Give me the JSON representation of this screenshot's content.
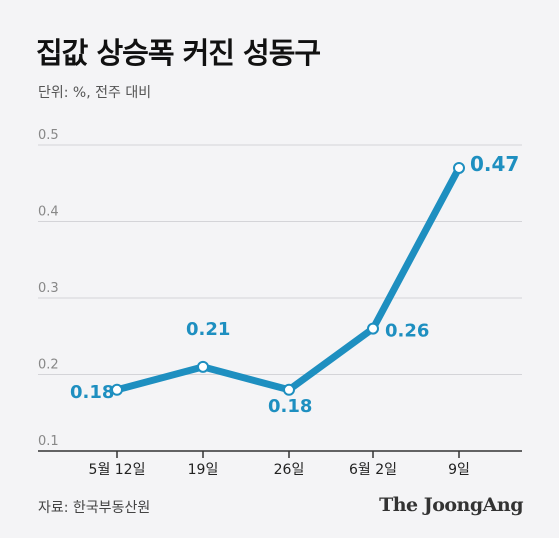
{
  "header": {
    "title": "집값 상승폭 커진 성동구",
    "unit": "단위: %, 전주 대비"
  },
  "footer": {
    "source": "자료: 한국부동산원",
    "brand": "The JoongAng"
  },
  "colors": {
    "line": "#1e8fc0",
    "background": "#f4f4f6",
    "grid": "#d4d4d8",
    "axis": "#333333"
  },
  "chart_data": {
    "type": "line",
    "categories": [
      "5월 12일",
      "19일",
      "26일",
      "6월 2일",
      "9일"
    ],
    "values": [
      0.18,
      0.21,
      0.18,
      0.26,
      0.47
    ],
    "value_labels": [
      "0.18",
      "0.21",
      "0.18",
      "0.26",
      "0.47"
    ],
    "yticks": [
      "0.1",
      "0.2",
      "0.3",
      "0.4",
      "0.5"
    ],
    "ylim": [
      0.1,
      0.5
    ],
    "grid": true,
    "xlabel": "",
    "ylabel": ""
  }
}
